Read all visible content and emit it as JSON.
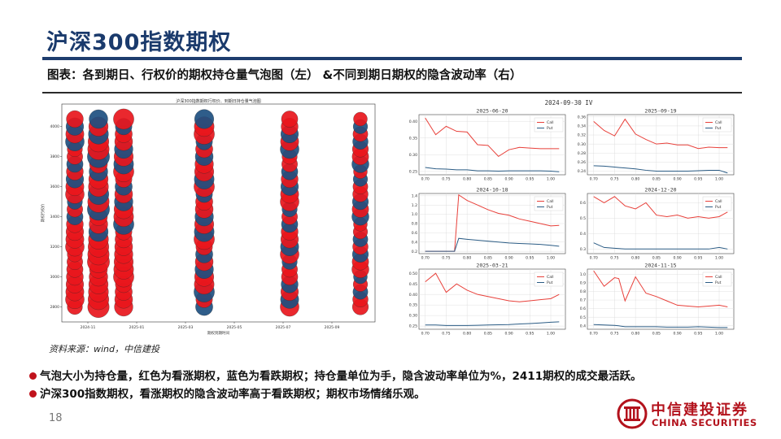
{
  "slide": {
    "title": "沪深300指数期权",
    "caption": "图表：各到期日、行权价的期权持仓量气泡图（左） &不同到期日期权的隐含波动率（右）",
    "source": "资料来源：wind，中信建投",
    "bullets": [
      "气泡大小为持仓量，红色为看涨期权，蓝色为看跌期权；持仓量单位为手，隐含波动率单位为%，2411期权的成交最活跃。",
      "沪深300指数期权，看涨期权的隐含波动率高于看跌期权；期权市场情绪乐观。"
    ],
    "page_number": "18",
    "logo": {
      "cn": "中信建投证券",
      "en": "CHINA SECURITIES"
    }
  },
  "colors": {
    "title": "#1a3a6c",
    "accent_red": "#c0121c",
    "call": "#e8403a",
    "put": "#2b5c85",
    "bubble_red": "#e8161c",
    "bubble_blue": "#1d4f80"
  },
  "chart_data": [
    {
      "type": "scatter",
      "subtype": "bubble",
      "title": "沪深300指数期权行权价、到期日持仓量气泡图",
      "xlabel": "期权到期时间",
      "ylabel": "期权行权价",
      "x_ticks": [
        "2024-11",
        "2025-01",
        "2025-03",
        "2025-05",
        "2025-07",
        "2025-09"
      ],
      "y_ticks": [
        2800,
        3000,
        3200,
        3400,
        3600,
        3800,
        4000
      ],
      "ylim": [
        2700,
        4150
      ],
      "columns": [
        "2024-11",
        "2024-12",
        "2025-01",
        "2025-03",
        "2025-06",
        "2025-09"
      ],
      "strike_levels": [
        2800,
        2850,
        2900,
        2950,
        3000,
        3050,
        3100,
        3150,
        3200,
        3250,
        3300,
        3350,
        3400,
        3450,
        3500,
        3550,
        3600,
        3650,
        3700,
        3750,
        3800,
        3850,
        3900,
        3950,
        4000,
        4050
      ]
    },
    {
      "type": "line",
      "title": "2024-09-30  IV",
      "panels": [
        {
          "title": "2025-06-20",
          "x": [
            0.7,
            0.725,
            0.75,
            0.775,
            0.8,
            0.825,
            0.85,
            0.875,
            0.9,
            0.925,
            0.95,
            0.975,
            1.0,
            1.02
          ],
          "x_ticks": [
            "0.70",
            "0.75",
            "0.80",
            "0.85",
            "0.90",
            "0.95",
            "1.00"
          ],
          "y_ticks": [
            "0.25",
            "0.30",
            "0.35",
            "0.40"
          ],
          "ylim": [
            0.24,
            0.42
          ],
          "series": [
            {
              "name": "Call",
              "values": [
                0.41,
                0.36,
                0.385,
                0.37,
                0.368,
                0.33,
                0.328,
                0.295,
                0.315,
                0.322,
                0.32,
                0.318,
                0.318,
                0.318
              ]
            },
            {
              "name": "Put",
              "values": [
                0.262,
                0.258,
                0.257,
                0.255,
                0.255,
                0.252,
                0.252,
                0.251,
                0.252,
                0.252,
                0.252,
                0.252,
                0.251,
                0.249
              ]
            }
          ]
        },
        {
          "title": "2025-09-19",
          "x": [
            0.7,
            0.725,
            0.75,
            0.775,
            0.8,
            0.825,
            0.85,
            0.875,
            0.9,
            0.925,
            0.95,
            0.975,
            1.0,
            1.02
          ],
          "x_ticks": [
            "0.70",
            "0.75",
            "0.80",
            "0.85",
            "0.90",
            "0.95",
            "1.00"
          ],
          "y_ticks": [
            "0.24",
            "0.26",
            "0.28",
            "0.30",
            "0.32",
            "0.34",
            "0.36"
          ],
          "ylim": [
            0.232,
            0.365
          ],
          "series": [
            {
              "name": "Call",
              "values": [
                0.35,
                0.33,
                0.318,
                0.355,
                0.322,
                0.31,
                0.3,
                0.302,
                0.298,
                0.298,
                0.29,
                0.293,
                0.292,
                0.292
              ]
            },
            {
              "name": "Put",
              "values": [
                0.252,
                0.251,
                0.249,
                0.247,
                0.245,
                0.242,
                0.24,
                0.24,
                0.24,
                0.24,
                0.241,
                0.242,
                0.242,
                0.236
              ]
            }
          ]
        },
        {
          "title": "2024-10-18",
          "x": [
            0.7,
            0.725,
            0.75,
            0.77,
            0.78,
            0.8,
            0.825,
            0.85,
            0.875,
            0.9,
            0.925,
            0.95,
            0.975,
            1.0,
            1.02
          ],
          "x_ticks": [
            "0.70",
            "0.75",
            "0.80",
            "0.85",
            "0.90",
            "0.95",
            "1.00"
          ],
          "y_ticks": [
            "0.2",
            "0.4",
            "0.6",
            "0.8",
            "1.0",
            "1.2",
            "1.4"
          ],
          "ylim": [
            0.15,
            1.45
          ],
          "series": [
            {
              "name": "Call",
              "values": [
                0.2,
                0.2,
                0.2,
                0.2,
                1.42,
                1.3,
                1.2,
                1.1,
                1.02,
                0.98,
                0.9,
                0.85,
                0.8,
                0.75,
                0.76
              ]
            },
            {
              "name": "Put",
              "values": [
                0.2,
                0.2,
                0.2,
                0.2,
                0.48,
                0.46,
                0.44,
                0.42,
                0.4,
                0.38,
                0.37,
                0.36,
                0.35,
                0.33,
                0.31
              ]
            }
          ]
        },
        {
          "title": "2024-12-20",
          "x": [
            0.7,
            0.725,
            0.75,
            0.775,
            0.8,
            0.825,
            0.85,
            0.875,
            0.9,
            0.925,
            0.95,
            0.975,
            1.0,
            1.02
          ],
          "x_ticks": [
            "0.70",
            "0.75",
            "0.80",
            "0.85",
            "0.90",
            "0.95",
            "1.00"
          ],
          "y_ticks": [
            "0.3",
            "0.4",
            "0.5",
            "0.6"
          ],
          "ylim": [
            0.27,
            0.66
          ],
          "series": [
            {
              "name": "Call",
              "values": [
                0.64,
                0.6,
                0.64,
                0.58,
                0.56,
                0.6,
                0.52,
                0.51,
                0.52,
                0.5,
                0.51,
                0.5,
                0.51,
                0.54
              ]
            },
            {
              "name": "Put",
              "values": [
                0.34,
                0.31,
                0.305,
                0.3,
                0.3,
                0.3,
                0.3,
                0.3,
                0.3,
                0.3,
                0.3,
                0.3,
                0.31,
                0.3
              ]
            }
          ]
        },
        {
          "title": "2025-03-21",
          "x": [
            0.7,
            0.725,
            0.75,
            0.775,
            0.8,
            0.825,
            0.85,
            0.875,
            0.9,
            0.925,
            0.95,
            0.975,
            1.0,
            1.02
          ],
          "x_ticks": [
            "0.70",
            "0.75",
            "0.80",
            "0.85",
            "0.90",
            "0.95",
            "1.00"
          ],
          "y_ticks": [
            "0.25",
            "0.30",
            "0.35",
            "0.40",
            "0.45",
            "0.50"
          ],
          "ylim": [
            0.235,
            0.52
          ],
          "series": [
            {
              "name": "Call",
              "values": [
                0.46,
                0.5,
                0.41,
                0.45,
                0.42,
                0.4,
                0.39,
                0.38,
                0.37,
                0.365,
                0.37,
                0.375,
                0.38,
                0.4
              ]
            },
            {
              "name": "Put",
              "values": [
                0.255,
                0.255,
                0.253,
                0.253,
                0.253,
                0.254,
                0.255,
                0.256,
                0.257,
                0.26,
                0.262,
                0.265,
                0.268,
                0.27
              ]
            }
          ]
        },
        {
          "title": "2024-11-15",
          "x": [
            0.7,
            0.725,
            0.75,
            0.76,
            0.775,
            0.8,
            0.825,
            0.85,
            0.875,
            0.9,
            0.925,
            0.95,
            0.975,
            1.0,
            1.02
          ],
          "x_ticks": [
            "0.70",
            "0.75",
            "0.80",
            "0.85",
            "0.90",
            "0.95",
            "1.00"
          ],
          "y_ticks": [
            "0.4",
            "0.5",
            "0.6",
            "0.7",
            "0.8",
            "0.9",
            "1.0"
          ],
          "ylim": [
            0.36,
            1.06
          ],
          "series": [
            {
              "name": "Call",
              "values": [
                1.04,
                0.86,
                0.96,
                0.95,
                0.69,
                0.97,
                0.78,
                0.74,
                0.69,
                0.64,
                0.63,
                0.62,
                0.63,
                0.64,
                0.62
              ]
            },
            {
              "name": "Put",
              "values": [
                0.415,
                0.41,
                0.405,
                0.4,
                0.39,
                0.39,
                0.39,
                0.39,
                0.385,
                0.385,
                0.385,
                0.39,
                0.385,
                0.38,
                0.38
              ]
            }
          ]
        }
      ]
    }
  ]
}
